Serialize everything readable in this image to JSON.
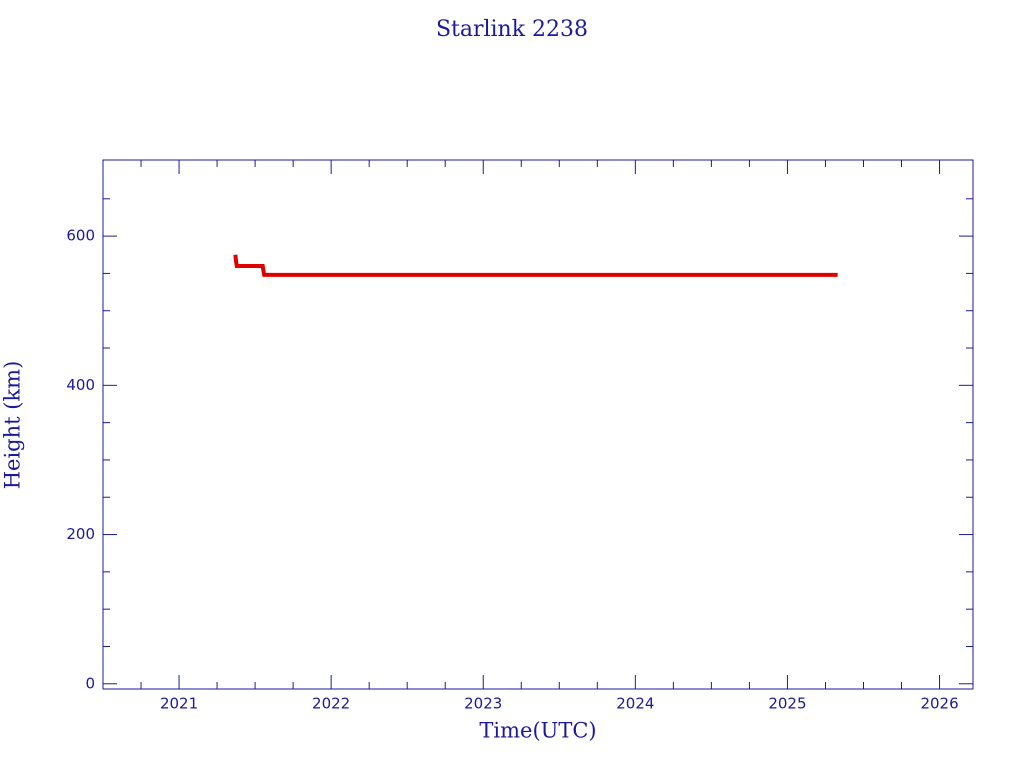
{
  "chart_data": {
    "type": "line",
    "title": "Starlink 2238",
    "xlabel": "Time(UTC)",
    "ylabel": "Height (km)",
    "series": [
      {
        "color": "#e00000",
        "x": [
          2021.37,
          2021.375,
          2021.38,
          2021.45,
          2021.5,
          2021.55,
          2021.555,
          2021.56,
          2021.6,
          2021.8,
          2022.0,
          2022.5,
          2023.0,
          2023.5,
          2024.0,
          2024.5,
          2025.0,
          2025.33
        ],
        "values": [
          575,
          566,
          560,
          560,
          560,
          560,
          553,
          548,
          548,
          548,
          548,
          548,
          548,
          548,
          548,
          548,
          548,
          548
        ]
      }
    ],
    "xlim": [
      2020.5,
      2026.22
    ],
    "ylim": [
      -7,
      702
    ],
    "xticks": [
      2021,
      2022,
      2023,
      2024,
      2025,
      2026
    ],
    "yticks": [
      0,
      200,
      400,
      600
    ],
    "xminorticks": [
      2020.75,
      2021.25,
      2021.5,
      2021.75,
      2022.25,
      2022.5,
      2022.75,
      2023.25,
      2023.5,
      2023.75,
      2024.25,
      2024.5,
      2024.75,
      2025.25,
      2025.5,
      2025.75
    ],
    "yminorticks": [
      50,
      100,
      150,
      250,
      300,
      350,
      450,
      500,
      550,
      650
    ],
    "frame_color": "#1a1a9c"
  }
}
